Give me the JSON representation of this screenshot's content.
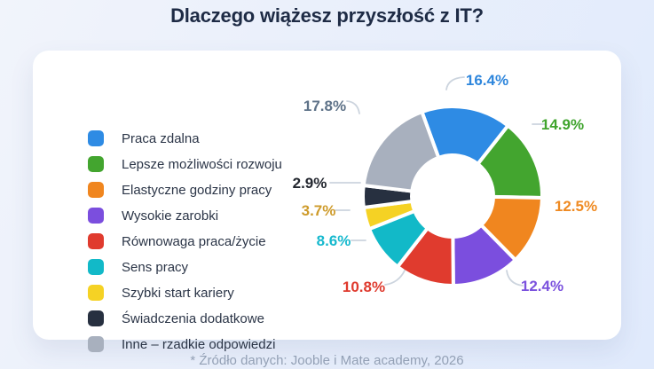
{
  "page": {
    "title": "Dlaczego wiążesz przyszłość z IT?",
    "footnote": "* Źródło danych: Jooble i Mate academy, 2026"
  },
  "chart_data": {
    "type": "pie",
    "subtype": "donut",
    "title": "Dlaczego wiążesz przyszłość z IT?",
    "legend_position": "left",
    "unit": "%",
    "categories": [
      "Praca zdalna",
      "Lepsze możliwości rozwoju",
      "Elastyczne godziny pracy",
      "Wysokie zarobki",
      "Równowaga praca/życie",
      "Sens pracy",
      "Szybki start kariery",
      "Świadczenia dodatkowe",
      "Inne – rzadkie odpowiedzi"
    ],
    "values": [
      16.4,
      14.9,
      12.5,
      12.4,
      10.8,
      8.6,
      3.7,
      2.9,
      17.8
    ],
    "value_labels": [
      "16.4%",
      "14.9%",
      "12.5%",
      "12.4%",
      "10.8%",
      "8.6%",
      "3.7%",
      "2.9%",
      "17.8%"
    ],
    "colors": [
      "#2E8BE4",
      "#43A52F",
      "#F0861F",
      "#7B4EDE",
      "#E03B2E",
      "#12B9C8",
      "#F5D224",
      "#273040",
      "#A8B0BE"
    ],
    "value_label_colors": [
      "#2E86DC",
      "#3FA42D",
      "#EF8A22",
      "#7B52DE",
      "#DF3A2E",
      "#17B9CE",
      "#CE9B2B",
      "#23272F",
      "#5E7288"
    ],
    "leader_line_color": "#ccd4de",
    "background_color": "#ffffff"
  }
}
